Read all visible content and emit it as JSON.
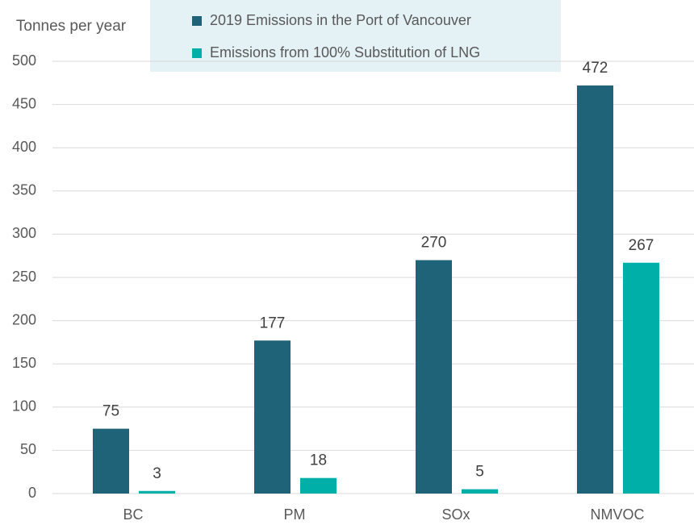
{
  "chart_data": {
    "type": "bar",
    "y_axis_label": "Tonnes per year",
    "categories": [
      "BC",
      "PM",
      "SOx",
      "NMVOC"
    ],
    "series": [
      {
        "name": "2019 Emissions in the Port of Vancouver",
        "color": "#1f6378",
        "values": [
          75,
          177,
          270,
          472
        ]
      },
      {
        "name": "Emissions from 100% Substitution of LNG",
        "color": "#00b0a8",
        "values": [
          3,
          18,
          5,
          267
        ]
      }
    ],
    "ylim": [
      0,
      500
    ],
    "yticks": [
      0,
      50,
      100,
      150,
      200,
      250,
      300,
      350,
      400,
      450,
      500
    ],
    "grid": true,
    "legend": "top"
  }
}
